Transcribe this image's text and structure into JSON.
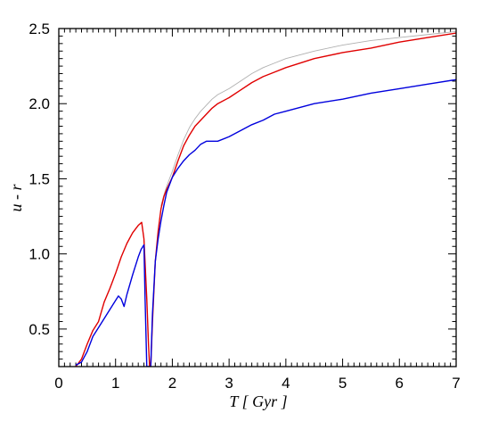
{
  "chart_data": {
    "type": "line",
    "title": "",
    "xlabel": "T [ Gyr ]",
    "ylabel": "u - r",
    "xlim": [
      0,
      7
    ],
    "ylim": [
      0.25,
      2.5
    ],
    "xticks": [
      "0",
      "1",
      "2",
      "3",
      "4",
      "5",
      "6",
      "7"
    ],
    "yticks": [
      "0.5",
      "1.0",
      "1.5",
      "2.0",
      "2.5"
    ],
    "grid": false,
    "legend": "none",
    "series": [
      {
        "color": "#e00000",
        "x": [
          0.3,
          0.4,
          0.5,
          0.6,
          0.7,
          0.8,
          0.9,
          1.0,
          1.1,
          1.2,
          1.3,
          1.4,
          1.46,
          1.5,
          1.55,
          1.58,
          1.6,
          1.62,
          1.65,
          1.7,
          1.75,
          1.8,
          1.85,
          1.9,
          2.0,
          2.1,
          2.2,
          2.3,
          2.4,
          2.5,
          2.6,
          2.7,
          2.8,
          3.0,
          3.2,
          3.4,
          3.6,
          3.8,
          4.0,
          4.5,
          5.0,
          5.5,
          6.0,
          6.5,
          7.0
        ],
        "y": [
          0.25,
          0.3,
          0.4,
          0.49,
          0.55,
          0.68,
          0.77,
          0.87,
          0.98,
          1.07,
          1.14,
          1.19,
          1.21,
          1.1,
          0.7,
          0.4,
          0.25,
          0.25,
          0.55,
          0.95,
          1.15,
          1.3,
          1.38,
          1.43,
          1.51,
          1.62,
          1.72,
          1.79,
          1.85,
          1.89,
          1.93,
          1.97,
          2.0,
          2.04,
          2.09,
          2.14,
          2.18,
          2.21,
          2.24,
          2.3,
          2.34,
          2.37,
          2.41,
          2.44,
          2.47
        ]
      },
      {
        "color": "#0000dd",
        "x": [
          0.3,
          0.4,
          0.5,
          0.6,
          0.7,
          0.8,
          0.9,
          1.0,
          1.05,
          1.1,
          1.15,
          1.2,
          1.3,
          1.4,
          1.45,
          1.5,
          1.52,
          1.55,
          1.6,
          1.62,
          1.65,
          1.7,
          1.75,
          1.8,
          1.85,
          1.9,
          2.0,
          2.1,
          2.2,
          2.3,
          2.4,
          2.5,
          2.6,
          2.7,
          2.8,
          3.0,
          3.2,
          3.4,
          3.6,
          3.8,
          4.0,
          4.5,
          5.0,
          5.5,
          6.0,
          6.5,
          7.0
        ],
        "y": [
          0.26,
          0.28,
          0.35,
          0.45,
          0.51,
          0.57,
          0.63,
          0.69,
          0.72,
          0.7,
          0.65,
          0.73,
          0.86,
          0.98,
          1.03,
          1.06,
          0.7,
          0.25,
          0.25,
          0.25,
          0.6,
          0.95,
          1.1,
          1.22,
          1.32,
          1.41,
          1.51,
          1.57,
          1.62,
          1.66,
          1.69,
          1.73,
          1.75,
          1.75,
          1.75,
          1.78,
          1.82,
          1.86,
          1.89,
          1.93,
          1.95,
          2.0,
          2.03,
          2.07,
          2.1,
          2.13,
          2.16
        ]
      },
      {
        "color": "#b0b0b0",
        "x": [
          1.8,
          1.85,
          1.9,
          2.0,
          2.1,
          2.2,
          2.3,
          2.4,
          2.5,
          2.6,
          2.7,
          2.8,
          3.0,
          3.2,
          3.4,
          3.6,
          3.8,
          4.0,
          4.5,
          5.0,
          5.5,
          6.0,
          6.5,
          7.0
        ],
        "y": [
          1.32,
          1.39,
          1.45,
          1.55,
          1.66,
          1.76,
          1.84,
          1.9,
          1.95,
          1.99,
          2.03,
          2.06,
          2.1,
          2.15,
          2.2,
          2.24,
          2.27,
          2.3,
          2.35,
          2.39,
          2.42,
          2.44,
          2.46,
          2.48
        ]
      }
    ]
  }
}
